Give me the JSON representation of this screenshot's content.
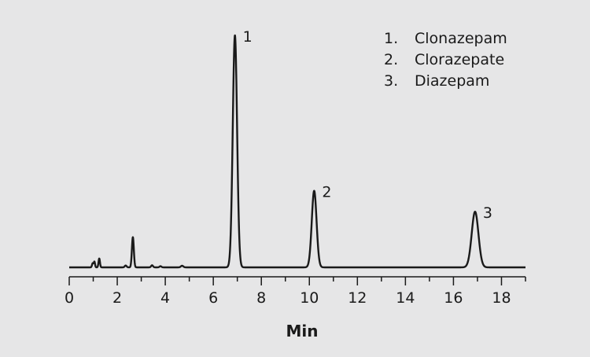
{
  "chart_data": {
    "type": "line",
    "title": "",
    "xlabel": "Min",
    "ylabel": "",
    "xlim": [
      0,
      19
    ],
    "ylim": [
      0,
      1
    ],
    "xticks": [
      0,
      2,
      4,
      6,
      8,
      10,
      12,
      14,
      16,
      18
    ],
    "grid": false,
    "legend_position": "top-right",
    "colors": {
      "line": "#1a1a1a",
      "background": "#e6e6e7"
    },
    "baseline": 0.0,
    "peaks": [
      {
        "label": "1",
        "name": "Clonazepam",
        "x": 6.9,
        "y": 1.0,
        "width": 0.09
      },
      {
        "label": "2",
        "name": "Clorazepate",
        "x": 10.2,
        "y": 0.33,
        "width": 0.1
      },
      {
        "label": "3",
        "name": "Diazepam",
        "x": 16.9,
        "y": 0.24,
        "width": 0.14
      }
    ],
    "minor_peaks": [
      {
        "x": 0.98,
        "y": 0.018,
        "width": 0.03
      },
      {
        "x": 1.05,
        "y": 0.024,
        "width": 0.025
      },
      {
        "x": 1.25,
        "y": 0.038,
        "width": 0.03
      },
      {
        "x": 2.35,
        "y": 0.008,
        "width": 0.04
      },
      {
        "x": 2.65,
        "y": 0.13,
        "width": 0.04
      },
      {
        "x": 3.45,
        "y": 0.009,
        "width": 0.04
      },
      {
        "x": 3.8,
        "y": 0.005,
        "width": 0.04
      },
      {
        "x": 4.7,
        "y": 0.007,
        "width": 0.05
      }
    ],
    "legend": [
      {
        "num": "1.",
        "name": "Clonazepam"
      },
      {
        "num": "2.",
        "name": "Clorazepate"
      },
      {
        "num": "3.",
        "name": "Diazepam"
      }
    ]
  }
}
